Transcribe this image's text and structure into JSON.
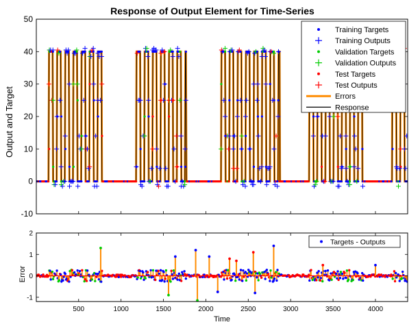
{
  "chart_data": [
    {
      "type": "line",
      "title": "Response of Output Element for Time-Series",
      "xlabel": "",
      "ylabel": "Output and Target",
      "xlim": [
        1,
        4380
      ],
      "ylim": [
        -10,
        50
      ],
      "yticks": [
        -10,
        0,
        10,
        20,
        30,
        40,
        50
      ],
      "grid": false,
      "legend_position": "top-right",
      "high_value": 40,
      "low_value": 0,
      "active_segments": [
        {
          "x_start": 150,
          "x_end": 780
        },
        {
          "x_start": 1180,
          "x_end": 1770
        },
        {
          "x_start": 2180,
          "x_end": 2870
        },
        {
          "x_start": 3220,
          "x_end": 3860
        },
        {
          "x_start": 4200,
          "x_end": 4380
        }
      ],
      "pulse_step": 48,
      "series": [
        {
          "name": "Training Targets",
          "color": "#0000ff",
          "marker": "dot"
        },
        {
          "name": "Training Outputs",
          "color": "#0000ff",
          "marker": "plus"
        },
        {
          "name": "Validation Targets",
          "color": "#00cc00",
          "marker": "dot"
        },
        {
          "name": "Validation Outputs",
          "color": "#00cc00",
          "marker": "plus"
        },
        {
          "name": "Test Targets",
          "color": "#ff0000",
          "marker": "dot"
        },
        {
          "name": "Test Outputs",
          "color": "#ff0000",
          "marker": "plus"
        },
        {
          "name": "Errors",
          "color": "#ff8c00",
          "marker": "line"
        },
        {
          "name": "Response",
          "color": "#000000",
          "marker": "line"
        }
      ]
    },
    {
      "type": "scatter",
      "title": "",
      "xlabel": "Time",
      "ylabel": "Error",
      "xlim": [
        1,
        4380
      ],
      "ylim": [
        -1.2,
        2
      ],
      "xticks": [
        500,
        1000,
        1500,
        2000,
        2500,
        3000,
        3500,
        4000
      ],
      "yticks": [
        -1,
        0,
        1,
        2
      ],
      "grid": false,
      "legend_position": "top-right",
      "series": [
        {
          "name": "Targets - Outputs",
          "color": "#0000ff",
          "marker": "dot"
        }
      ],
      "notable_errors": [
        {
          "x": 760,
          "y": 1.3
        },
        {
          "x": 1560,
          "y": -0.9
        },
        {
          "x": 1640,
          "y": 0.9
        },
        {
          "x": 1880,
          "y": 1.2
        },
        {
          "x": 1900,
          "y": -1.15
        },
        {
          "x": 2040,
          "y": 0.9
        },
        {
          "x": 2140,
          "y": -0.75
        },
        {
          "x": 2280,
          "y": 0.8
        },
        {
          "x": 2360,
          "y": 0.7
        },
        {
          "x": 2560,
          "y": 1.1
        },
        {
          "x": 2580,
          "y": -0.8
        },
        {
          "x": 2800,
          "y": 1.4
        },
        {
          "x": 3380,
          "y": 0.5
        },
        {
          "x": 4000,
          "y": 0.5
        }
      ]
    }
  ]
}
